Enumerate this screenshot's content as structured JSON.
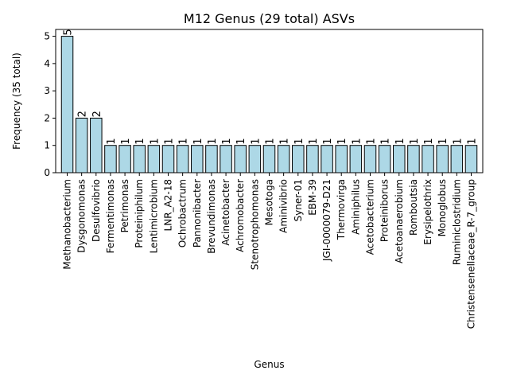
{
  "chart_data": {
    "type": "bar",
    "title": "M12 Genus (29 total) ASVs",
    "xlabel": "Genus",
    "ylabel": "Frequency (35 total)",
    "ylim": [
      0,
      5.25
    ],
    "yticks": [
      0,
      1,
      2,
      3,
      4,
      5
    ],
    "grid": false,
    "bar_color": "#add8e6",
    "edge_color": "#000000",
    "categories": [
      "Methanobacterium",
      "Dysgonomonas",
      "Desulfovibrio",
      "Fermentimonas",
      "Petrimonas",
      "Proteiniphilum",
      "Lentimicrobium",
      "LNR_A2-18",
      "Ochrobactrum",
      "Pannonibacter",
      "Brevundimonas",
      "Acinetobacter",
      "Achromobacter",
      "Stenotrophomonas",
      "Mesotoga",
      "Aminivibrio",
      "Syner-01",
      "EBM-39",
      "JGI-0000079-D21",
      "Thermovirga",
      "Aminiphilus",
      "Acetobacterium",
      "Proteiniborus",
      "Acetoanaerobium",
      "Romboutsia",
      "Erysipelothrix",
      "Monoglobus",
      "Ruminiclostridium",
      "Christensenellaceae_R-7_group"
    ],
    "values": [
      5,
      2,
      2,
      1,
      1,
      1,
      1,
      1,
      1,
      1,
      1,
      1,
      1,
      1,
      1,
      1,
      1,
      1,
      1,
      1,
      1,
      1,
      1,
      1,
      1,
      1,
      1,
      1,
      1
    ]
  }
}
